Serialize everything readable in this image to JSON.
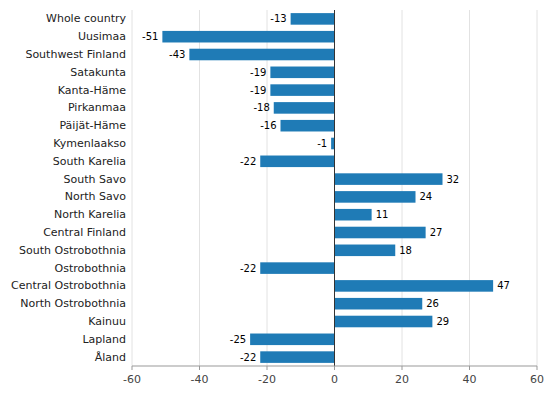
{
  "chart_data": {
    "type": "bar",
    "orientation": "horizontal",
    "categories": [
      "Whole country",
      "Uusimaa",
      "Southwest Finland",
      "Satakunta",
      "Kanta-Häme",
      "Pirkanmaa",
      "Päijät-Häme",
      "Kymenlaakso",
      "South Karelia",
      "South Savo",
      "North Savo",
      "North Karelia",
      "Central Finland",
      "South Ostrobothnia",
      "Ostrobothnia",
      "Central Ostrobothnia",
      "North Ostrobothnia",
      "Kainuu",
      "Lapland",
      "Åland"
    ],
    "values": [
      -13,
      -51,
      -43,
      -19,
      -19,
      -18,
      -16,
      -1,
      -22,
      32,
      24,
      11,
      27,
      18,
      -22,
      47,
      26,
      29,
      -25,
      -22
    ],
    "color": "#1f7bb6",
    "xlim": [
      -60,
      60
    ],
    "xticks": [
      -60,
      -40,
      -20,
      0,
      20,
      40,
      60
    ],
    "grid": true,
    "data_labels": true
  }
}
